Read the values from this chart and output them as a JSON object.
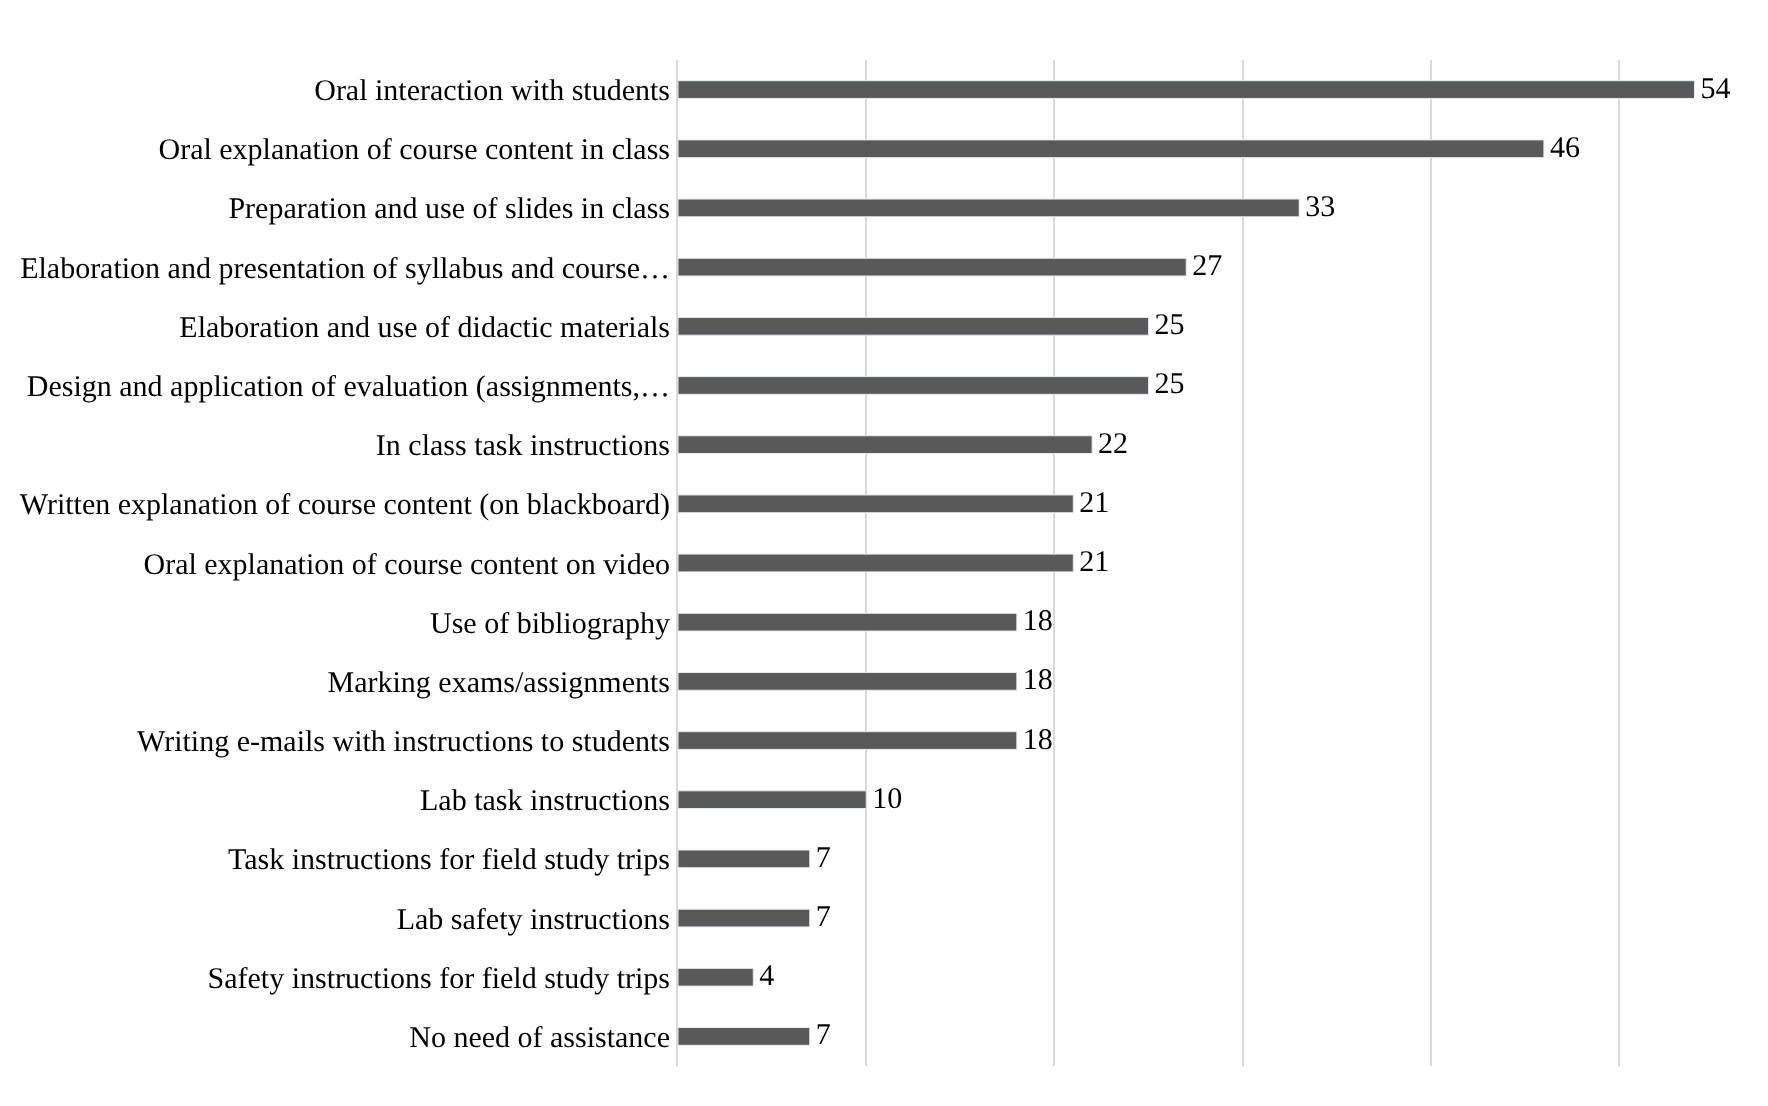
{
  "chart_data": {
    "type": "bar",
    "orientation": "horizontal",
    "categories": [
      "Oral interaction with students",
      "Oral explanation of course content in class",
      "Preparation and use of slides in class",
      "Elaboration and presentation of syllabus and course…",
      "Elaboration and use of didactic materials",
      "Design and application of evaluation (assignments,…",
      "In class task instructions",
      "Written explanation of course content (on blackboard)",
      "Oral explanation of course content on video",
      "Use of bibliography",
      "Marking exams/assignments",
      "Writing e-mails with instructions to students",
      "Lab task instructions",
      "Task instructions for field study trips",
      "Lab safety instructions",
      "Safety instructions for field study trips",
      "No need of assistance"
    ],
    "values": [
      54,
      46,
      33,
      27,
      25,
      25,
      22,
      21,
      21,
      18,
      18,
      18,
      10,
      7,
      7,
      4,
      7
    ],
    "color": "#595959",
    "grid": "x",
    "tick_labels": "y",
    "data_labels": true
  }
}
